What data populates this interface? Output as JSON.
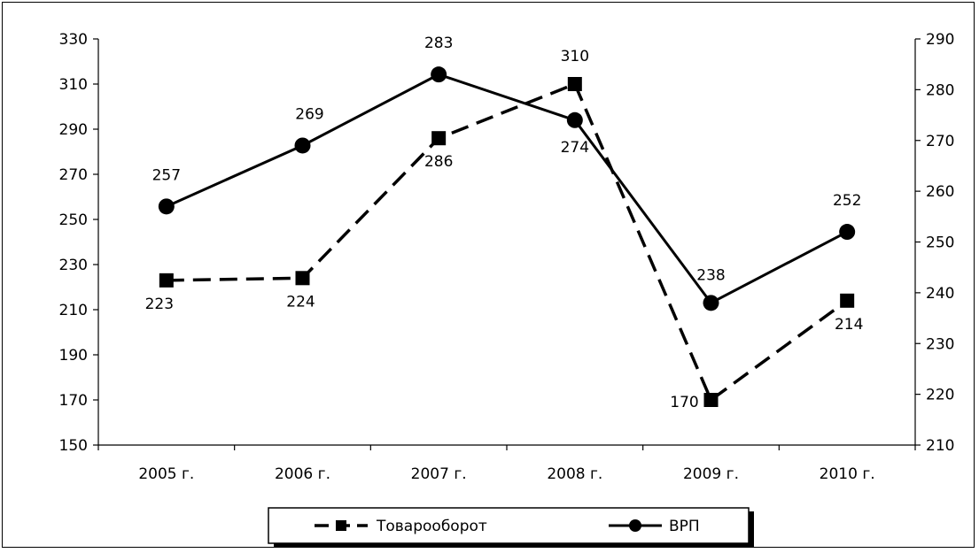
{
  "chart_data": {
    "type": "line",
    "categories": [
      "2005 г.",
      "2006 г.",
      "2007 г.",
      "2008 г.",
      "2009 г.",
      "2010 г."
    ],
    "series": [
      {
        "name": "Товарооборот",
        "axis": "left",
        "style": "dashed",
        "marker": "square",
        "values": [
          223,
          224,
          286,
          310,
          170,
          214
        ],
        "labels": [
          "223",
          "224",
          "286",
          "310",
          "170",
          "214"
        ]
      },
      {
        "name": "ВРП",
        "axis": "right",
        "style": "solid",
        "marker": "circle",
        "values": [
          257,
          269,
          283,
          274,
          238,
          252
        ],
        "labels": [
          "257",
          "269",
          "283",
          "274",
          "238",
          "252"
        ]
      }
    ],
    "y_left": {
      "range": [
        150,
        330
      ],
      "ticks": [
        "150",
        "170",
        "190",
        "210",
        "230",
        "250",
        "270",
        "290",
        "310",
        "330"
      ]
    },
    "y_right": {
      "range": [
        210,
        290
      ],
      "ticks": [
        "210",
        "220",
        "230",
        "240",
        "250",
        "260",
        "270",
        "280",
        "290"
      ]
    },
    "grid": false,
    "legend_position": "bottom",
    "colors": {
      "line": "#000000",
      "background": "#ffffff"
    }
  }
}
